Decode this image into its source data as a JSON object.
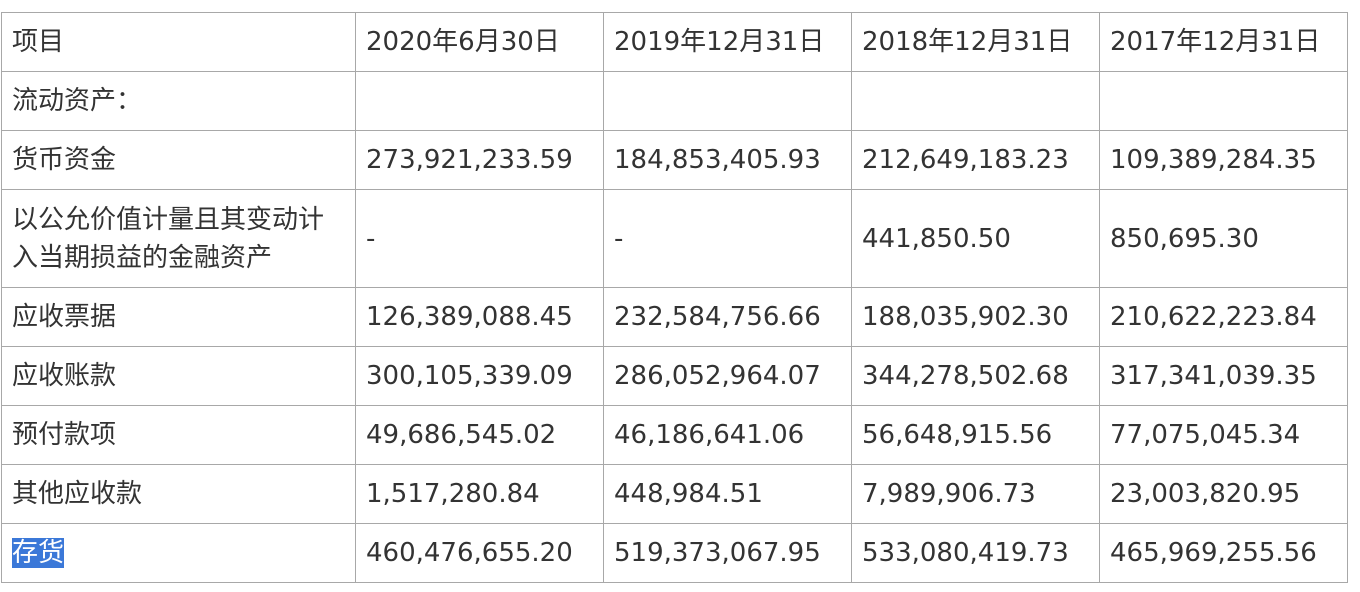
{
  "table": {
    "header": [
      "项目",
      "2020年6月30日",
      "2019年12月31日",
      "2018年12月31日",
      "2017年12月31日"
    ],
    "rows": [
      [
        "流动资产：",
        null,
        null,
        null,
        null
      ],
      [
        "货币资金",
        "273,921,233.59",
        "184,853,405.93",
        "212,649,183.23",
        "109,389,284.35"
      ],
      [
        "以公允价值计量且其变动计入当期损益的金融资产",
        "-",
        "-",
        "441,850.50",
        "850,695.30"
      ],
      [
        "应收票据",
        "126,389,088.45",
        "232,584,756.66",
        "188,035,902.30",
        "210,622,223.84"
      ],
      [
        "应收账款",
        "300,105,339.09",
        "286,052,964.07",
        "344,278,502.68",
        "317,341,039.35"
      ],
      [
        "预付款项",
        "49,686,545.02",
        "46,186,641.06",
        "56,648,915.56",
        "77,075,045.34"
      ],
      [
        "其他应收款",
        "1,517,280.84",
        "448,984.51",
        "7,989,906.73",
        "23,003,820.95"
      ],
      [
        "存货",
        "460,476,655.20",
        "519,373,067.95",
        "533,080,419.73",
        "465,969,255.56"
      ]
    ]
  }
}
